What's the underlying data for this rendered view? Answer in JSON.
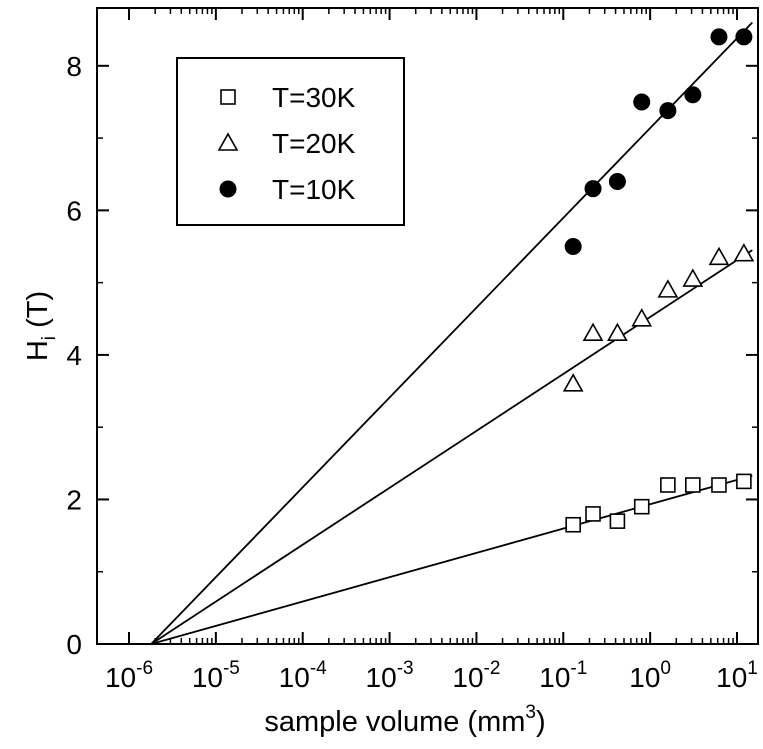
{
  "chart_data": {
    "type": "scatter",
    "xscale": "log",
    "xlim": [
      1e-06,
      10
    ],
    "ylim": [
      0,
      8.8
    ],
    "xticks": [
      {
        "base": "10",
        "exp": "-6",
        "value": 1e-06
      },
      {
        "base": "10",
        "exp": "-5",
        "value": 1e-05
      },
      {
        "base": "10",
        "exp": "-4",
        "value": 0.0001
      },
      {
        "base": "10",
        "exp": "-3",
        "value": 0.001
      },
      {
        "base": "10",
        "exp": "-2",
        "value": 0.01
      },
      {
        "base": "10",
        "exp": "-1",
        "value": 0.1
      },
      {
        "base": "10",
        "exp": "0",
        "value": 1
      },
      {
        "base": "10",
        "exp": "1",
        "value": 10
      }
    ],
    "yticks": [
      {
        "label": "0",
        "value": 0
      },
      {
        "label": "2",
        "value": 2
      },
      {
        "label": "4",
        "value": 4
      },
      {
        "label": "6",
        "value": 6
      },
      {
        "label": "8",
        "value": 8
      }
    ],
    "xlabel": {
      "text": "sample volume (mm",
      "sup": "3",
      "tail": ")"
    },
    "ylabel": {
      "text": "H",
      "sub": "i",
      "tail": " (T)"
    },
    "legend_position": "top-left",
    "grid": false,
    "series": [
      {
        "name": "T=30K",
        "marker": "open-square",
        "color": "#000000",
        "x": [
          0.13,
          0.22,
          0.42,
          0.8,
          1.6,
          3.1,
          6.2,
          12
        ],
        "y": [
          1.65,
          1.8,
          1.7,
          1.9,
          2.2,
          2.2,
          2.2,
          2.25
        ],
        "fit": {
          "x": [
            1.8e-06,
            15
          ],
          "y": [
            0,
            2.33
          ]
        }
      },
      {
        "name": "T=20K",
        "marker": "open-triangle",
        "color": "#000000",
        "x": [
          0.13,
          0.22,
          0.42,
          0.8,
          1.6,
          3.1,
          6.2,
          12
        ],
        "y": [
          3.6,
          4.3,
          4.3,
          4.5,
          4.9,
          5.05,
          5.35,
          5.4
        ],
        "fit": {
          "x": [
            1.8e-06,
            15
          ],
          "y": [
            0,
            5.45
          ]
        }
      },
      {
        "name": "T=10K",
        "marker": "filled-circle",
        "color": "#000000",
        "x": [
          0.13,
          0.22,
          0.42,
          0.8,
          1.6,
          3.1,
          6.2,
          12
        ],
        "y": [
          5.5,
          6.3,
          6.4,
          7.5,
          7.38,
          7.6,
          8.4,
          8.4
        ],
        "fit": {
          "x": [
            1.8e-06,
            15
          ],
          "y": [
            0,
            8.6
          ]
        }
      }
    ]
  }
}
